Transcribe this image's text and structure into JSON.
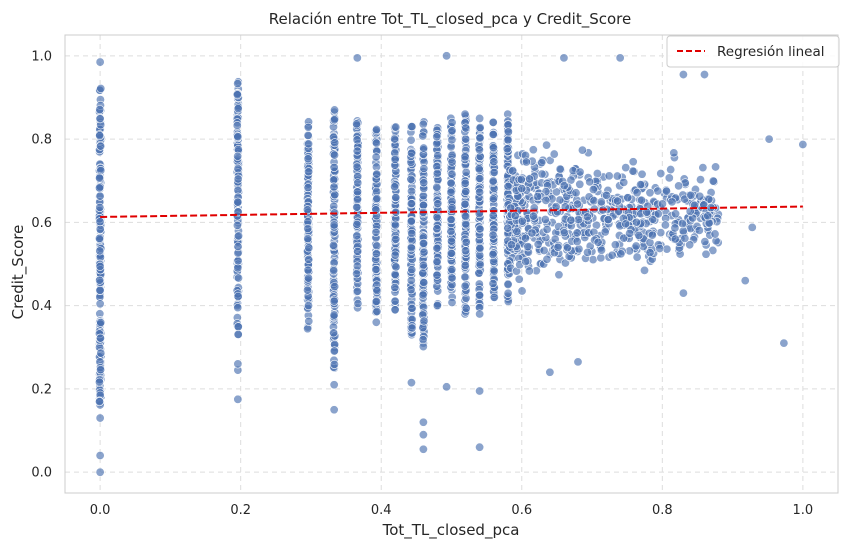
{
  "chart_data": {
    "type": "scatter",
    "title": "Relación entre Tot_TL_closed_pca y Credit_Score",
    "xlabel": "Tot_TL_closed_pca",
    "ylabel": "Credit_Score",
    "xlim": [
      -0.05,
      1.05
    ],
    "ylim": [
      -0.05,
      1.05
    ],
    "xticks": [
      "0.0",
      "0.2",
      "0.4",
      "0.6",
      "0.8",
      "1.0"
    ],
    "yticks": [
      "0.0",
      "0.2",
      "0.4",
      "0.6",
      "0.8",
      "1.0"
    ],
    "grid": true,
    "legend_position": "top-right",
    "colors": {
      "points": "#4c72b0",
      "regression": "#e00000",
      "grid": "#dddddd",
      "frame": "#cccccc"
    },
    "columns": [
      {
        "x": 0.0,
        "y_min": 0.16,
        "y_max": 0.93,
        "count": 180
      },
      {
        "x": 0.196,
        "y_min": 0.33,
        "y_max": 0.94,
        "count": 130
      },
      {
        "x": 0.296,
        "y_min": 0.34,
        "y_max": 0.86,
        "count": 110
      },
      {
        "x": 0.333,
        "y_min": 0.25,
        "y_max": 0.87,
        "count": 120
      },
      {
        "x": 0.366,
        "y_min": 0.35,
        "y_max": 0.85,
        "count": 90
      },
      {
        "x": 0.393,
        "y_min": 0.36,
        "y_max": 0.84,
        "count": 100
      },
      {
        "x": 0.42,
        "y_min": 0.39,
        "y_max": 0.83,
        "count": 110
      },
      {
        "x": 0.443,
        "y_min": 0.33,
        "y_max": 0.83,
        "count": 110
      },
      {
        "x": 0.46,
        "y_min": 0.3,
        "y_max": 0.85,
        "count": 120
      },
      {
        "x": 0.48,
        "y_min": 0.38,
        "y_max": 0.84,
        "count": 110
      },
      {
        "x": 0.5,
        "y_min": 0.4,
        "y_max": 0.85,
        "count": 120
      },
      {
        "x": 0.52,
        "y_min": 0.38,
        "y_max": 0.86,
        "count": 120
      },
      {
        "x": 0.54,
        "y_min": 0.38,
        "y_max": 0.86,
        "count": 120
      },
      {
        "x": 0.56,
        "y_min": 0.42,
        "y_max": 0.85,
        "count": 110
      },
      {
        "x": 0.58,
        "y_min": 0.41,
        "y_max": 0.86,
        "count": 110
      }
    ],
    "cloud": {
      "x_range": [
        0.58,
        0.88
      ],
      "y_mean": 0.62,
      "y_spread": 0.07,
      "count": 650
    },
    "outliers": [
      {
        "x": 0.0,
        "y": 0.0
      },
      {
        "x": 0.0,
        "y": 0.04
      },
      {
        "x": 0.0,
        "y": 0.13
      },
      {
        "x": 0.0,
        "y": 0.985
      },
      {
        "x": 0.196,
        "y": 0.175
      },
      {
        "x": 0.196,
        "y": 0.245
      },
      {
        "x": 0.196,
        "y": 0.26
      },
      {
        "x": 0.333,
        "y": 0.15
      },
      {
        "x": 0.333,
        "y": 0.21
      },
      {
        "x": 0.366,
        "y": 0.995
      },
      {
        "x": 0.443,
        "y": 0.215
      },
      {
        "x": 0.46,
        "y": 0.055
      },
      {
        "x": 0.46,
        "y": 0.09
      },
      {
        "x": 0.46,
        "y": 0.12
      },
      {
        "x": 0.493,
        "y": 0.205
      },
      {
        "x": 0.493,
        "y": 1.0
      },
      {
        "x": 0.54,
        "y": 0.06
      },
      {
        "x": 0.54,
        "y": 0.195
      },
      {
        "x": 0.64,
        "y": 0.24
      },
      {
        "x": 0.68,
        "y": 0.265
      },
      {
        "x": 0.66,
        "y": 0.995
      },
      {
        "x": 0.74,
        "y": 0.995
      },
      {
        "x": 0.83,
        "y": 0.43
      },
      {
        "x": 0.83,
        "y": 0.955
      },
      {
        "x": 0.86,
        "y": 0.955
      },
      {
        "x": 0.918,
        "y": 0.46
      },
      {
        "x": 0.952,
        "y": 0.8
      },
      {
        "x": 0.973,
        "y": 0.31
      },
      {
        "x": 1.0,
        "y": 0.787
      },
      {
        "x": 0.928,
        "y": 0.588
      }
    ],
    "regression": {
      "name": "Regresión lineal",
      "x": [
        0.0,
        1.0
      ],
      "y": [
        0.613,
        0.638
      ]
    }
  }
}
